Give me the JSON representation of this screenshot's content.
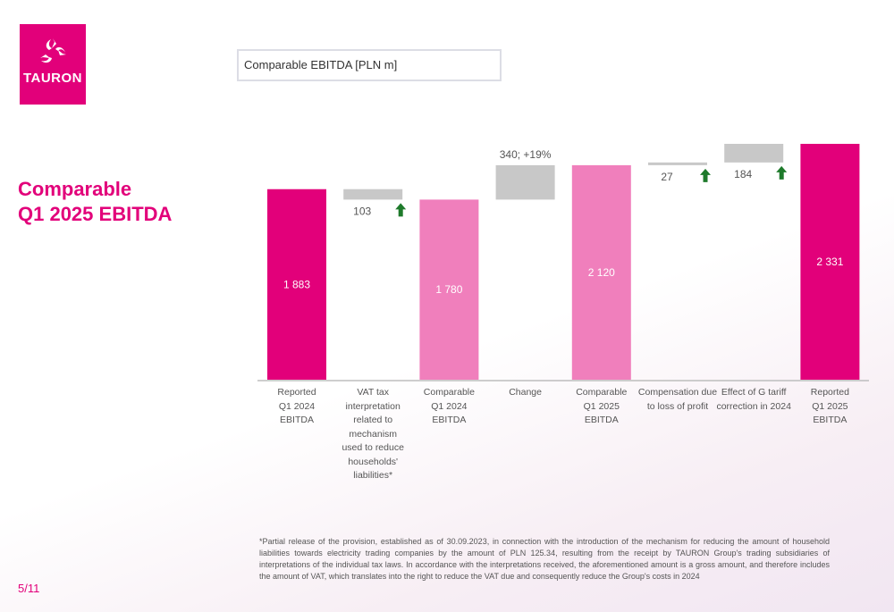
{
  "logo": {
    "text": "TAURON"
  },
  "heading": {
    "line1": "Comparable",
    "line2": "Q1 2025 EBITDA"
  },
  "chart_box_title": "Comparable EBITDA [PLN m]",
  "page": "5/11",
  "footnote": "*Partial release of the provision, established as of 30.09.2023, in connection with the introduction of the mechanism for reducing the amount of household liabilities towards electricity trading companies by the amount of PLN 125.34, resulting from the receipt by TAURON Group's trading subsidiaries of interpretations of the individual tax laws. In accordance with the interpretations received, the aforementioned amount is a gross amount, and therefore includes the amount of VAT, which translates into the right to reduce the VAT due and consequently reduce the Group's costs in 2024",
  "colors": {
    "brand": "#e2007a",
    "comparable": "#f07fbc",
    "delta": "#c8c8c8",
    "arrow": "#1e7a2b",
    "axis": "#bdbdbd"
  },
  "chart_data": {
    "type": "waterfall",
    "title": "Comparable EBITDA [PLN m]",
    "categories": [
      "Reported Q1 2024 EBITDA",
      "VAT tax interpretation related to mechanism used to reduce households' liabilities*",
      "Comparable Q1 2024 EBITDA",
      "Change",
      "Comparable Q1 2025 EBITDA",
      "Compensation due to loss of profit",
      "Effect of G tariff correction in 2024",
      "Reported Q1 2025 EBITDA"
    ],
    "category_lines": [
      [
        "Reported",
        "Q1 2024",
        "EBITDA"
      ],
      [
        "VAT tax",
        "interpretation",
        "related to mechanism",
        "used to reduce",
        "households' liabilities*"
      ],
      [
        "Comparable",
        "Q1 2024",
        "EBITDA"
      ],
      [
        "Change"
      ],
      [
        "Comparable",
        "Q1 2025",
        "EBITDA"
      ],
      [
        "Compensation due",
        "to loss of profit"
      ],
      [
        "Effect of G tariff",
        "correction in 2024"
      ],
      [
        "Reported",
        "Q1 2025",
        "EBITDA"
      ]
    ],
    "bars": [
      {
        "kind": "total",
        "start": 0,
        "end": 1883,
        "label": "1 883",
        "style": "brand"
      },
      {
        "kind": "delta",
        "start": 1780,
        "end": 1883,
        "label": "103",
        "arrow": "up"
      },
      {
        "kind": "total",
        "start": 0,
        "end": 1780,
        "label": "1 780",
        "style": "comparable"
      },
      {
        "kind": "delta",
        "start": 1780,
        "end": 2120,
        "label": "340; +19%"
      },
      {
        "kind": "total",
        "start": 0,
        "end": 2120,
        "label": "2 120",
        "style": "comparable"
      },
      {
        "kind": "delta",
        "start": 2120,
        "end": 2147,
        "label": "27",
        "arrow": "up"
      },
      {
        "kind": "delta",
        "start": 2147,
        "end": 2331,
        "label": "184",
        "arrow": "up"
      },
      {
        "kind": "total",
        "start": 0,
        "end": 2331,
        "label": "2 331",
        "style": "brand"
      }
    ],
    "ylim": [
      0,
      2331
    ]
  }
}
